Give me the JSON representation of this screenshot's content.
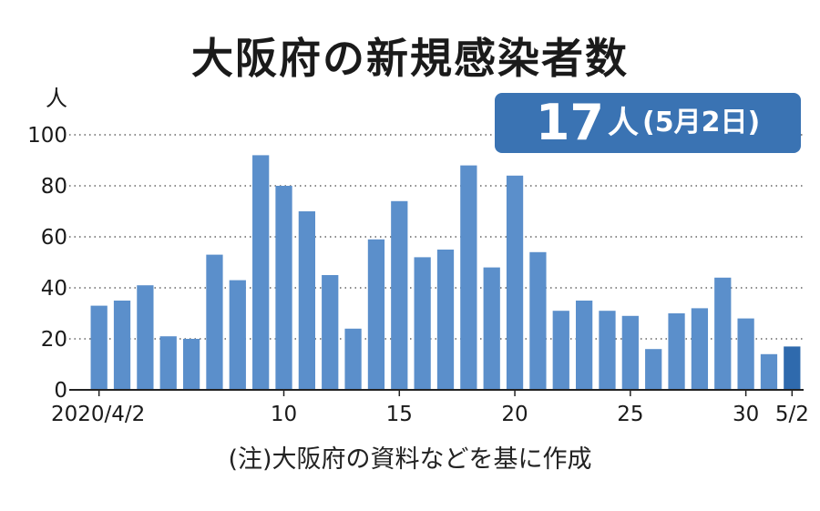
{
  "chart_data": {
    "type": "bar",
    "title": "大阪府の新規感染者数",
    "ylabel": "人",
    "ylim": [
      0,
      100
    ],
    "yticks": [
      0,
      20,
      40,
      60,
      80,
      100
    ],
    "xtick_labels": [
      {
        "index": 0,
        "label": "2020/4/2"
      },
      {
        "index": 8,
        "label": "10"
      },
      {
        "index": 13,
        "label": "15"
      },
      {
        "index": 18,
        "label": "20"
      },
      {
        "index": 23,
        "label": "25"
      },
      {
        "index": 28,
        "label": "30"
      },
      {
        "index": 30,
        "label": "5/2"
      }
    ],
    "categories": [
      "4/2",
      "4/3",
      "4/4",
      "4/5",
      "4/6",
      "4/7",
      "4/8",
      "4/9",
      "4/10",
      "4/11",
      "4/12",
      "4/13",
      "4/14",
      "4/15",
      "4/16",
      "4/17",
      "4/18",
      "4/19",
      "4/20",
      "4/21",
      "4/22",
      "4/23",
      "4/24",
      "4/25",
      "4/26",
      "4/27",
      "4/28",
      "4/29",
      "4/30",
      "5/1",
      "5/2"
    ],
    "values": [
      33,
      35,
      41,
      21,
      20,
      53,
      43,
      92,
      80,
      70,
      45,
      24,
      59,
      74,
      52,
      55,
      88,
      48,
      84,
      54,
      31,
      35,
      31,
      29,
      16,
      30,
      32,
      44,
      28,
      14,
      17
    ],
    "bar_color": "#5b8fcb",
    "highlight_color": "#2f6aad",
    "highlight_index": 30,
    "grid": true,
    "highlight_badge": {
      "value": "17",
      "unit": "人",
      "date": "(5月2日)"
    },
    "note": "(注)大阪府の資料などを基に作成"
  }
}
